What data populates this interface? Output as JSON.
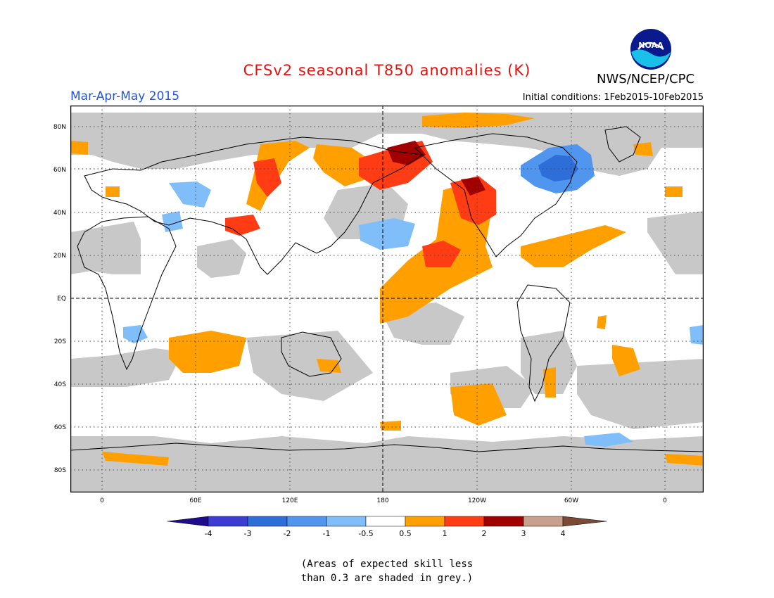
{
  "header": {
    "title": "CFSv2 seasonal T850 anomalies (K)",
    "title_color": "#e8100c",
    "season": "Mar-Apr-May 2015",
    "season_color": "#2452d8",
    "agency": "NWS/NCEP/CPC",
    "initial_conditions": "Initial conditions: 1Feb2015-10Feb2015"
  },
  "logo": {
    "icon": "noaa-logo-icon",
    "text": "NOAA"
  },
  "map": {
    "projection": "cylindrical-equidistant",
    "lat_labels": [
      "80N",
      "60N",
      "40N",
      "20N",
      "EQ",
      "20S",
      "40S",
      "60S",
      "80S"
    ],
    "lon_labels": [
      "0",
      "60E",
      "120E",
      "180",
      "120W",
      "60W",
      "0"
    ],
    "gridlines": "dotted",
    "reference_lines": [
      "equator",
      "dateline"
    ],
    "skill_mask_color": "#c8c8c8"
  },
  "colorbar": {
    "levels": [
      "-4",
      "-3",
      "-2",
      "-1",
      "-0.5",
      "0.5",
      "1",
      "2",
      "3",
      "4"
    ],
    "colors": [
      "#1e0c8c",
      "#3c3cd2",
      "#2e6ed8",
      "#5096ee",
      "#7fbef8",
      "#ffffff",
      "#ffa000",
      "#ff3c14",
      "#a00000",
      "#c8a08c",
      "#7a4a36"
    ]
  },
  "note": {
    "line1": "(Areas of expected skill less",
    "line2": "than 0.3 are shaded in grey.)"
  }
}
